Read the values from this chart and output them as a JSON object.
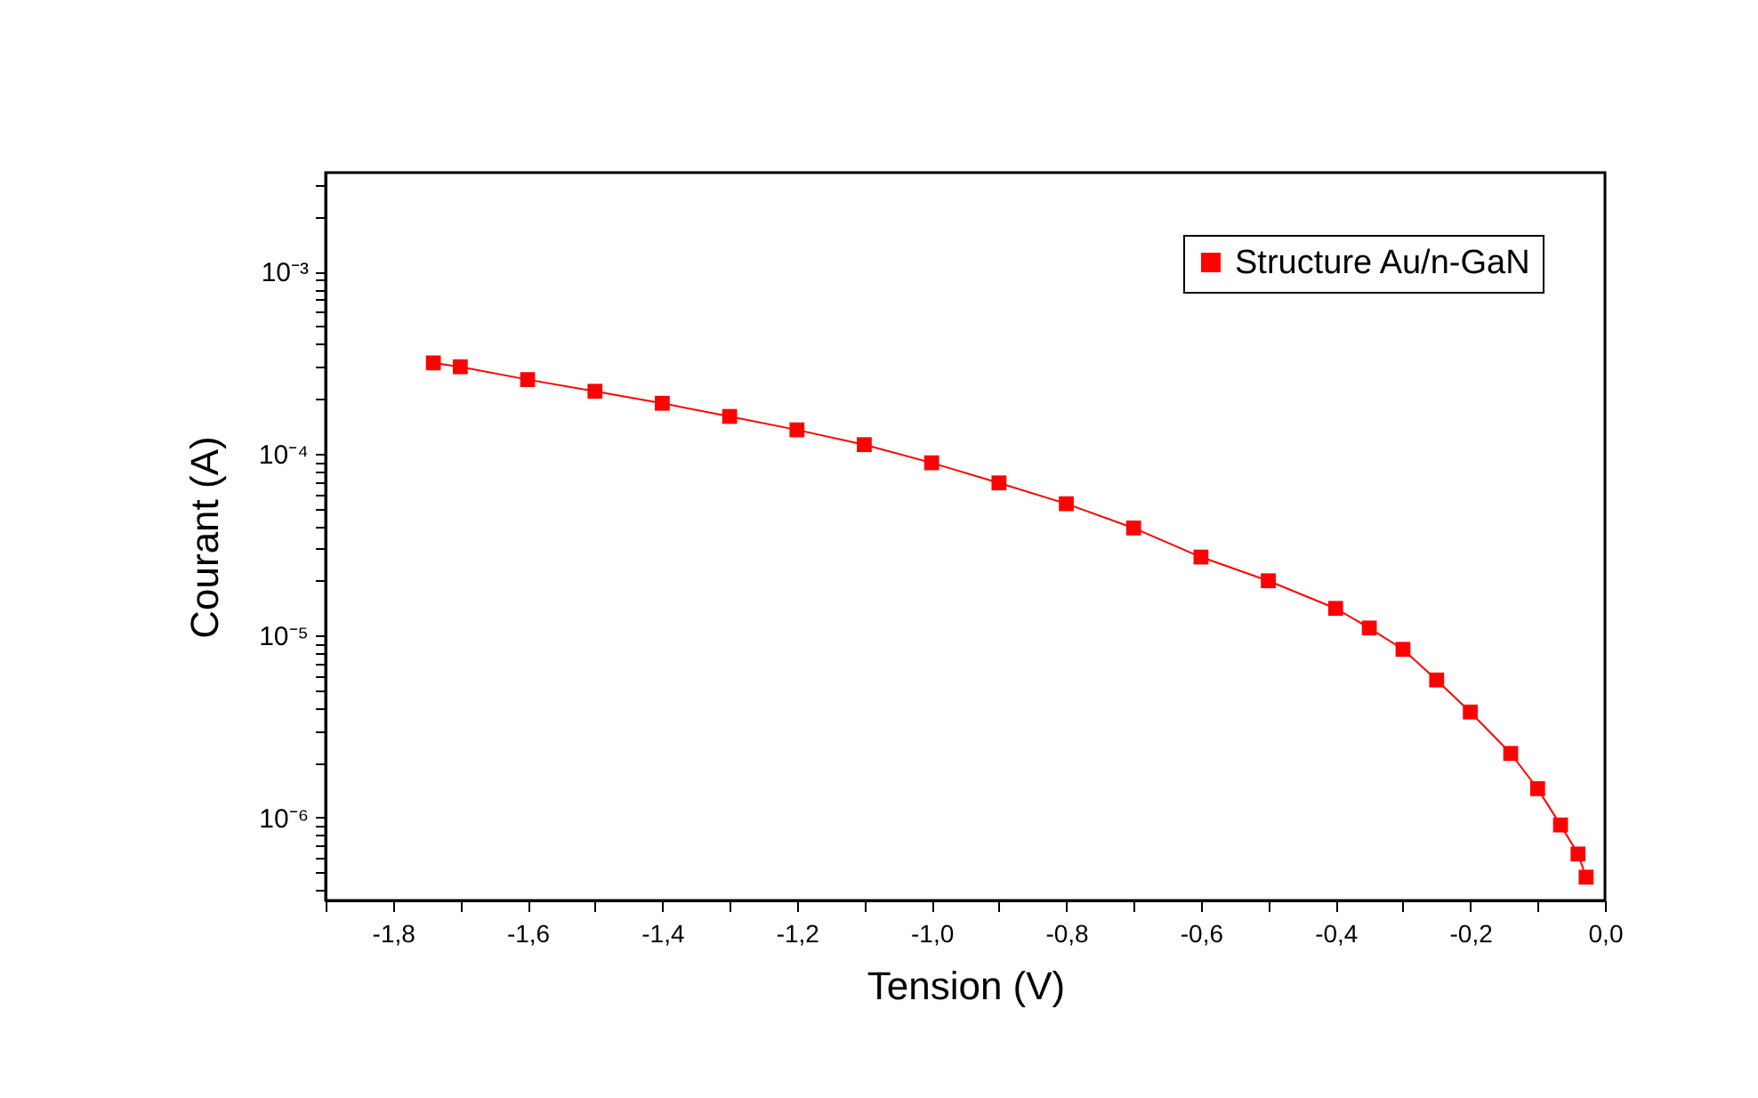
{
  "chart_data": {
    "type": "line",
    "xlabel": "Tension (V)",
    "ylabel": "Courant (A)",
    "log": "y",
    "grid": false,
    "legend": "top right",
    "marker": "square",
    "line_style": "solid",
    "x": [
      -1.74,
      -1.7,
      -1.6,
      -1.5,
      -1.4,
      -1.3,
      -1.2,
      -1.1,
      -1.0,
      -0.9,
      -0.8,
      -0.7,
      -0.6,
      -0.5,
      -0.4,
      -0.35,
      -0.3,
      -0.25,
      -0.2,
      -0.14,
      -0.1,
      -0.066,
      -0.04,
      -0.028
    ],
    "series": [
      {
        "name": "Structure Au/n-GaN",
        "color": "#ff0000",
        "values": [
          0.000315,
          0.0003,
          0.000255,
          0.00022,
          0.000189,
          0.00016,
          0.000135,
          0.000112,
          8.9e-05,
          6.9e-05,
          5.3e-05,
          3.9e-05,
          2.7e-05,
          2e-05,
          1.41e-05,
          1.1e-05,
          8.4e-06,
          5.7e-06,
          3.8e-06,
          2.25e-06,
          1.44e-06,
          9.1e-07,
          6.3e-07,
          4.7e-07
        ]
      }
    ],
    "xlim": [
      -1.9,
      0
    ],
    "xticks": [
      {
        "value": -1.9,
        "label": null
      },
      {
        "value": -1.8,
        "label": "-1,8"
      },
      {
        "value": -1.7,
        "label": null
      },
      {
        "value": -1.6,
        "label": "-1,6"
      },
      {
        "value": -1.5,
        "label": null
      },
      {
        "value": -1.4,
        "label": "-1,4"
      },
      {
        "value": -1.3,
        "label": null
      },
      {
        "value": -1.2,
        "label": "-1,2"
      },
      {
        "value": -1.1,
        "label": null
      },
      {
        "value": -1.0,
        "label": "-1,0"
      },
      {
        "value": -0.9,
        "label": null
      },
      {
        "value": -0.8,
        "label": "-0,8"
      },
      {
        "value": -0.7,
        "label": null
      },
      {
        "value": -0.6,
        "label": "-0,6"
      },
      {
        "value": -0.5,
        "label": null
      },
      {
        "value": -0.4,
        "label": "-0,4"
      },
      {
        "value": -0.3,
        "label": null
      },
      {
        "value": -0.2,
        "label": "-0,2"
      },
      {
        "value": -0.1,
        "label": null
      },
      {
        "value": 0,
        "label": "0,0"
      }
    ],
    "ylim": [
      3.5e-07,
      0.0035
    ],
    "yticks": [
      {
        "value": 4e-07,
        "label": null
      },
      {
        "value": 5e-07,
        "label": null
      },
      {
        "value": 6e-07,
        "label": null
      },
      {
        "value": 7e-07,
        "label": null
      },
      {
        "value": 8e-07,
        "label": null
      },
      {
        "value": 9e-07,
        "label": null
      },
      {
        "value": 1e-06,
        "label": "10⁻⁶"
      },
      {
        "value": 2e-06,
        "label": null
      },
      {
        "value": 3e-06,
        "label": null
      },
      {
        "value": 4e-06,
        "label": null
      },
      {
        "value": 5e-06,
        "label": null
      },
      {
        "value": 6e-06,
        "label": null
      },
      {
        "value": 7e-06,
        "label": null
      },
      {
        "value": 8e-06,
        "label": null
      },
      {
        "value": 9e-06,
        "label": null
      },
      {
        "value": 1e-05,
        "label": "10⁻⁵"
      },
      {
        "value": 2e-05,
        "label": null
      },
      {
        "value": 3e-05,
        "label": null
      },
      {
        "value": 4e-05,
        "label": null
      },
      {
        "value": 5e-05,
        "label": null
      },
      {
        "value": 6e-05,
        "label": null
      },
      {
        "value": 7e-05,
        "label": null
      },
      {
        "value": 8e-05,
        "label": null
      },
      {
        "value": 9e-05,
        "label": null
      },
      {
        "value": 0.0001,
        "label": "10⁻⁴"
      },
      {
        "value": 0.0002,
        "label": null
      },
      {
        "value": 0.0003,
        "label": null
      },
      {
        "value": 0.0004,
        "label": null
      },
      {
        "value": 0.0005,
        "label": null
      },
      {
        "value": 0.0006,
        "label": null
      },
      {
        "value": 0.0007,
        "label": null
      },
      {
        "value": 0.0008,
        "label": null
      },
      {
        "value": 0.0009,
        "label": null
      },
      {
        "value": 0.001,
        "label": "10⁻³"
      },
      {
        "value": 0.002,
        "label": null
      },
      {
        "value": 0.003,
        "label": null
      }
    ]
  }
}
